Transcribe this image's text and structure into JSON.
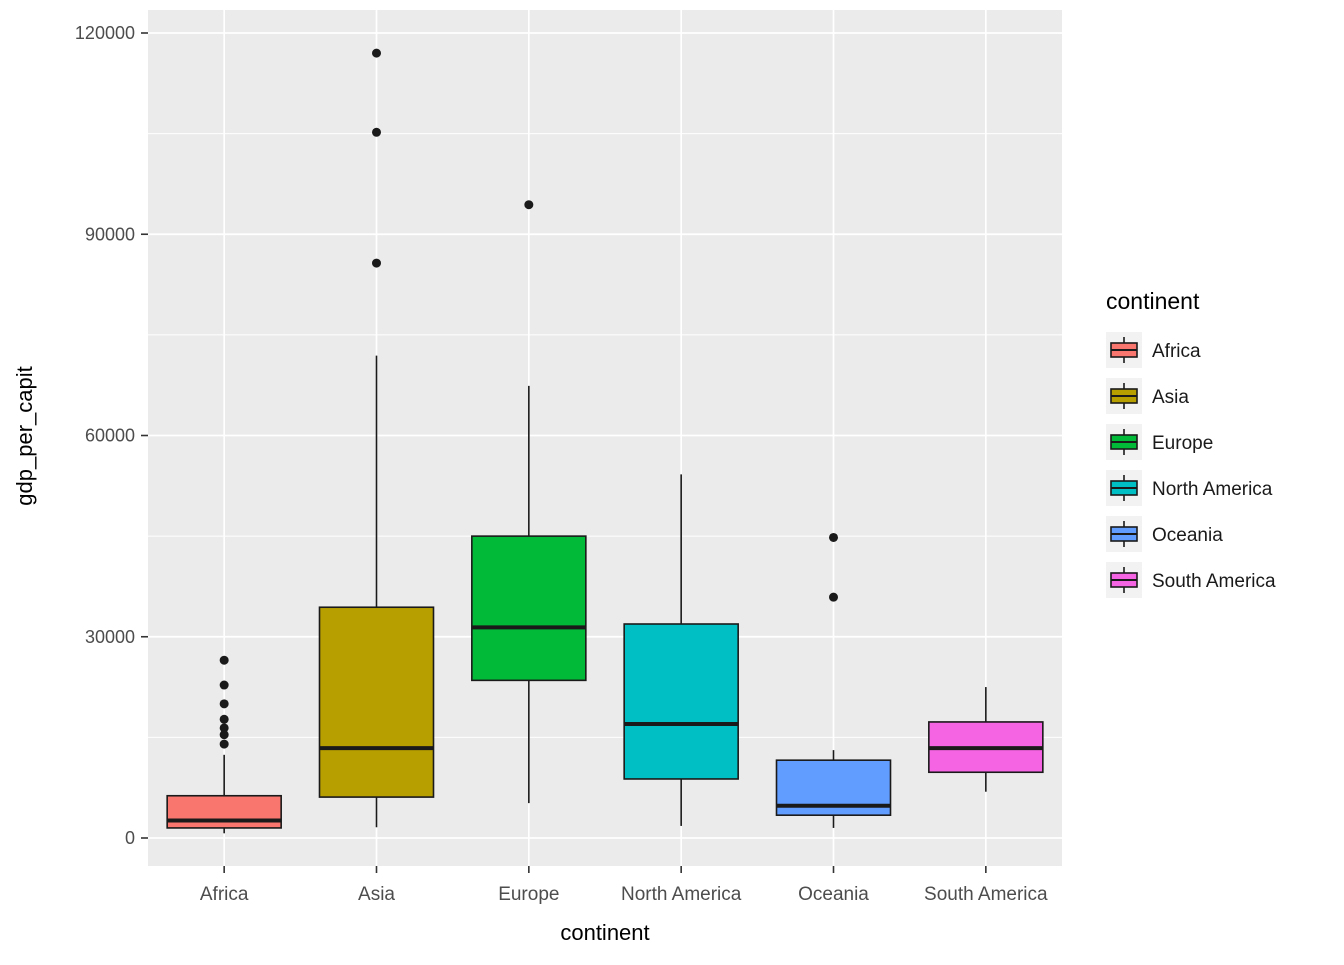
{
  "chart_data": {
    "type": "boxplot",
    "title": "",
    "xlabel": "continent",
    "ylabel": "gdp_per_capit",
    "ylim": [
      0,
      120000
    ],
    "yticks": [
      0,
      30000,
      60000,
      90000,
      120000
    ],
    "ytick_labels": [
      "0",
      "30000",
      "60000",
      "90000",
      "120000"
    ],
    "yminor": [
      15000,
      45000,
      75000,
      105000
    ],
    "categories": [
      "Africa",
      "Asia",
      "Europe",
      "North America",
      "Oceania",
      "South America"
    ],
    "panel_bg": "#EBEBEB",
    "grid_color": "#FFFFFF",
    "axis_text_color": "#4D4D4D",
    "axis_title_color": "#000000",
    "box_stroke": "#1A1A1A",
    "outlier_color": "#1A1A1A",
    "legend": {
      "title": "continent",
      "key_bg": "#F2F2F2",
      "label_color": "#1A1A1A"
    },
    "series": [
      {
        "name": "Africa",
        "color": "#F8766D",
        "lower": 700,
        "q1": 1500,
        "median": 2600,
        "q3": 6300,
        "upper": 12400,
        "outliers": [
          14000,
          15400,
          16400,
          17700,
          20000,
          22800,
          26500
        ]
      },
      {
        "name": "Asia",
        "color": "#B79F00",
        "lower": 1600,
        "q1": 6100,
        "median": 13400,
        "q3": 34400,
        "upper": 71900,
        "outliers": [
          85700,
          105200,
          117000
        ]
      },
      {
        "name": "Europe",
        "color": "#00BA38",
        "lower": 5200,
        "q1": 23500,
        "median": 31400,
        "q3": 45000,
        "upper": 67400,
        "outliers": [
          94400
        ]
      },
      {
        "name": "North America",
        "color": "#00BFC4",
        "lower": 1800,
        "q1": 8800,
        "median": 17000,
        "q3": 31900,
        "upper": 54200,
        "outliers": []
      },
      {
        "name": "Oceania",
        "color": "#619CFF",
        "lower": 1500,
        "q1": 3400,
        "median": 4800,
        "q3": 11600,
        "upper": 13100,
        "outliers": [
          35900,
          44800
        ]
      },
      {
        "name": "South America",
        "color": "#F564E2",
        "lower": 6900,
        "q1": 9800,
        "median": 13400,
        "q3": 17300,
        "upper": 22500,
        "outliers": []
      }
    ]
  }
}
